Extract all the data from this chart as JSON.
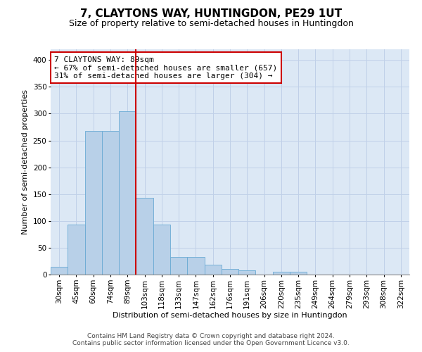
{
  "title": "7, CLAYTONS WAY, HUNTINGDON, PE29 1UT",
  "subtitle": "Size of property relative to semi-detached houses in Huntingdon",
  "xlabel": "Distribution of semi-detached houses by size in Huntingdon",
  "ylabel": "Number of semi-detached properties",
  "footer_line1": "Contains HM Land Registry data © Crown copyright and database right 2024.",
  "footer_line2": "Contains public sector information licensed under the Open Government Licence v3.0.",
  "annotation_line1": "7 CLAYTONS WAY: 89sqm",
  "annotation_line2": "← 67% of semi-detached houses are smaller (657)",
  "annotation_line3": "31% of semi-detached houses are larger (304) →",
  "bar_labels": [
    "30sqm",
    "45sqm",
    "60sqm",
    "74sqm",
    "89sqm",
    "103sqm",
    "118sqm",
    "133sqm",
    "147sqm",
    "162sqm",
    "176sqm",
    "191sqm",
    "206sqm",
    "220sqm",
    "235sqm",
    "249sqm",
    "264sqm",
    "279sqm",
    "293sqm",
    "308sqm",
    "322sqm"
  ],
  "bar_values": [
    15,
    93,
    268,
    268,
    305,
    143,
    93,
    33,
    33,
    18,
    10,
    8,
    0,
    5,
    5,
    0,
    0,
    0,
    0,
    0,
    0
  ],
  "bar_color": "#b8d0e8",
  "bar_edge_color": "#6aaad4",
  "vline_color": "#cc0000",
  "vline_position": 4,
  "ylim": [
    0,
    420
  ],
  "yticks": [
    0,
    50,
    100,
    150,
    200,
    250,
    300,
    350,
    400
  ],
  "bg_color": "#dce8f5",
  "fig_bg": "#ffffff",
  "grid_color": "#c0d0e8",
  "title_fontsize": 11,
  "subtitle_fontsize": 9,
  "axis_label_fontsize": 8,
  "tick_fontsize": 7.5,
  "annotation_fontsize": 8,
  "footer_fontsize": 6.5
}
